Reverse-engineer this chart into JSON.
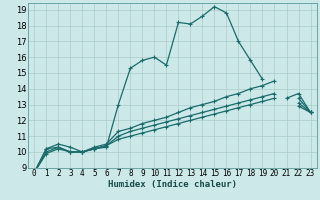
{
  "xlabel": "Humidex (Indice chaleur)",
  "bg_color": "#cce8e8",
  "grid_color": "#aacccc",
  "line_color": "#1a6b6b",
  "xlim": [
    -0.5,
    23.5
  ],
  "ylim": [
    9,
    19.4
  ],
  "yticks": [
    9,
    10,
    11,
    12,
    13,
    14,
    15,
    16,
    17,
    18,
    19
  ],
  "xtick_labels": [
    "0",
    "1",
    "2",
    "3",
    "4",
    "5",
    "6",
    "7",
    "8",
    "9",
    "10",
    "11",
    "12",
    "13",
    "14",
    "15",
    "16",
    "17",
    "18",
    "19",
    "20",
    "21",
    "22",
    "23"
  ],
  "series": [
    [
      8.7,
      10.2,
      10.3,
      10.0,
      10.0,
      10.2,
      10.3,
      13.0,
      15.3,
      15.8,
      16.0,
      15.5,
      18.2,
      18.1,
      18.6,
      19.2,
      18.8,
      17.0,
      15.8,
      14.6,
      null,
      13.4,
      13.7,
      12.5
    ],
    [
      8.7,
      10.2,
      10.5,
      10.3,
      10.0,
      10.3,
      10.5,
      11.3,
      11.5,
      11.8,
      12.0,
      12.2,
      12.5,
      12.8,
      13.0,
      13.2,
      13.5,
      13.7,
      14.0,
      14.2,
      14.5,
      null,
      13.4,
      12.5
    ],
    [
      8.7,
      10.0,
      10.3,
      10.0,
      10.0,
      10.2,
      10.4,
      11.0,
      11.3,
      11.5,
      11.7,
      11.9,
      12.1,
      12.3,
      12.5,
      12.7,
      12.9,
      13.1,
      13.3,
      13.5,
      13.7,
      null,
      13.1,
      12.5
    ],
    [
      8.7,
      9.9,
      10.2,
      10.0,
      10.0,
      10.2,
      10.4,
      10.8,
      11.0,
      11.2,
      11.4,
      11.6,
      11.8,
      12.0,
      12.2,
      12.4,
      12.6,
      12.8,
      13.0,
      13.2,
      13.4,
      null,
      12.9,
      12.5
    ]
  ],
  "xlabel_fontsize": 6.5,
  "tick_fontsize": 5.5,
  "ylabel_fontsize": 6.0
}
